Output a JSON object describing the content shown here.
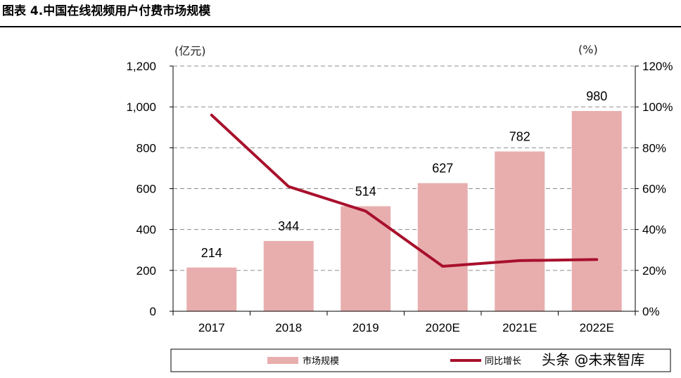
{
  "header": {
    "title": "图表 4.中国在线视频用户付费市场规模"
  },
  "chart_data": {
    "type": "bar",
    "categories": [
      "2017",
      "2018",
      "2019",
      "2020E",
      "2021E",
      "2022E"
    ],
    "series": [
      {
        "name": "市场规模",
        "type": "bar",
        "axis": "left",
        "values": [
          214,
          344,
          514,
          627,
          782,
          980
        ],
        "color": "#e8aeae"
      },
      {
        "name": "同比增长",
        "type": "line",
        "axis": "right",
        "values": [
          96,
          61,
          49,
          22,
          24.8,
          25.3
        ],
        "color": "#a8102c"
      }
    ],
    "y_left": {
      "unit": "(亿元)",
      "min": 0,
      "max": 1200,
      "ticks": [
        "0",
        "200",
        "400",
        "600",
        "800",
        "1,000",
        "1,200"
      ]
    },
    "y_right": {
      "unit": "(%)",
      "min": 0,
      "max": 120,
      "ticks": [
        "0%",
        "20%",
        "40%",
        "60%",
        "80%",
        "100%",
        "120%"
      ]
    },
    "data_labels": [
      "214",
      "344",
      "514",
      "627",
      "782",
      "980"
    ],
    "grid": true,
    "legend": {
      "position": "bottom",
      "items": [
        "市场规模",
        "同比增长"
      ]
    }
  },
  "watermark": {
    "text": "头条 @未来智库"
  }
}
